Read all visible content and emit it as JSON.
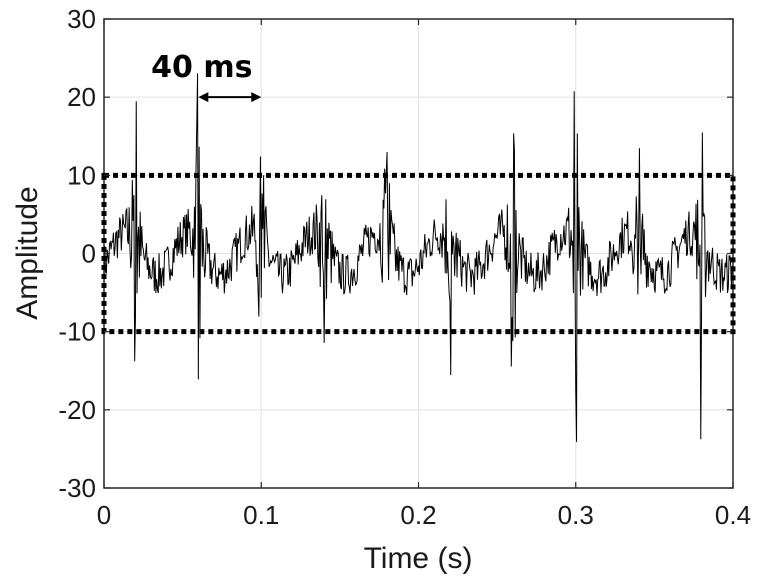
{
  "chart_data": {
    "type": "line",
    "title": "",
    "xlabel": "Time (s)",
    "ylabel": "Amplitude",
    "xlim": [
      0,
      0.4
    ],
    "ylim": [
      -30,
      30
    ],
    "xticks": [
      0,
      0.1,
      0.2,
      0.3,
      0.4
    ],
    "xtick_labels": [
      "0",
      "0.1",
      "0.2",
      "0.3",
      "0.4"
    ],
    "yticks": [
      -30,
      -20,
      -10,
      0,
      10,
      20,
      30
    ],
    "ytick_labels": [
      "-30",
      "-20",
      "-10",
      "0",
      "10",
      "20",
      "30"
    ],
    "grid": true,
    "legend": "none",
    "series_color": "#000000",
    "series": [
      {
        "sample_step": 0.0005,
        "period": 0.04,
        "pulse_times": [
          0.02,
          0.06,
          0.1,
          0.14,
          0.18,
          0.22,
          0.26,
          0.3,
          0.34,
          0.38
        ],
        "pulse_peaks_pos": [
          16,
          19,
          18,
          14,
          15,
          19,
          17,
          28,
          13,
          15
        ],
        "pulse_peaks_neg": [
          -19,
          -23,
          -24,
          -12,
          -13,
          -23,
          -18,
          -25,
          -13,
          -21
        ],
        "baseline_range": [
          -5,
          5
        ]
      }
    ],
    "band": {
      "y_min": -10,
      "y_max": 10,
      "x_min": 0,
      "x_max": 0.4,
      "style": "dotted"
    },
    "annotation": {
      "text": "40 ms",
      "x_start": 0.06,
      "x_end": 0.1,
      "y": 20
    }
  }
}
